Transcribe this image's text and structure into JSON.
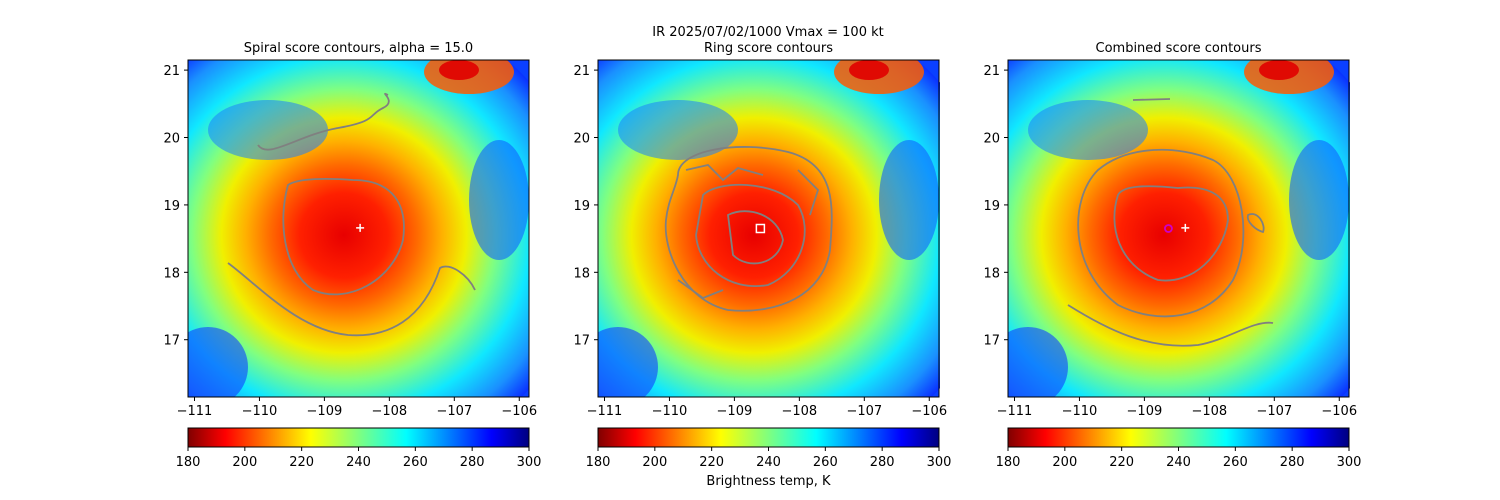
{
  "figure": {
    "suptitle_line1": "IR  2025/07/02/1000    Vmax = 100 kt",
    "colorbar_label": "Brightness temp, K"
  },
  "chart_data": [
    {
      "type": "heatmap",
      "title": "Spiral score contours, alpha = 15.0",
      "xlim": [
        -111.1,
        -105.85
      ],
      "ylim": [
        16.15,
        21.15
      ],
      "x_ticks": [
        -111,
        -110,
        -109,
        -108,
        -107,
        -106
      ],
      "y_ticks": [
        17,
        18,
        19,
        20,
        21
      ],
      "x_tick_labels": [
        "−111",
        "−110",
        "−109",
        "−108",
        "−107",
        "−106"
      ],
      "y_tick_labels": [
        "17",
        "18",
        "19",
        "20",
        "21"
      ],
      "colorbar": {
        "min": 180,
        "max": 300,
        "ticks": [
          180,
          200,
          220,
          240,
          260,
          280,
          300
        ],
        "colormap": "jet_r"
      },
      "markers": [
        {
          "kind": "plus",
          "lon": -108.45,
          "lat": 18.66,
          "color": "#ffffff"
        }
      ]
    },
    {
      "type": "heatmap",
      "title": "Ring score contours",
      "xlim": [
        -111.1,
        -105.85
      ],
      "ylim": [
        16.15,
        21.15
      ],
      "x_ticks": [
        -111,
        -110,
        -109,
        -108,
        -107,
        -106
      ],
      "y_ticks": [
        17,
        18,
        19,
        20,
        21
      ],
      "x_tick_labels": [
        "−111",
        "−110",
        "−109",
        "−108",
        "−107",
        "−106"
      ],
      "y_tick_labels": [
        "17",
        "18",
        "19",
        "20",
        "21"
      ],
      "colorbar": {
        "min": 180,
        "max": 300,
        "ticks": [
          180,
          200,
          220,
          240,
          260,
          280,
          300
        ],
        "colormap": "jet_r"
      },
      "markers": [
        {
          "kind": "square",
          "lon": -108.6,
          "lat": 18.65,
          "color": "#ffffff"
        }
      ]
    },
    {
      "type": "heatmap",
      "title": "Combined score contours",
      "xlim": [
        -111.1,
        -105.85
      ],
      "ylim": [
        16.15,
        21.15
      ],
      "x_ticks": [
        -111,
        -110,
        -109,
        -108,
        -107,
        -106
      ],
      "y_ticks": [
        17,
        18,
        19,
        20,
        21
      ],
      "x_tick_labels": [
        "−111",
        "−110",
        "−109",
        "−108",
        "−107",
        "−106"
      ],
      "y_tick_labels": [
        "17",
        "18",
        "19",
        "20",
        "21"
      ],
      "colorbar": {
        "min": 180,
        "max": 300,
        "ticks": [
          180,
          200,
          220,
          240,
          260,
          280,
          300
        ],
        "colormap": "jet_r"
      },
      "markers": [
        {
          "kind": "plus",
          "lon": -108.37,
          "lat": 18.66,
          "color": "#ffffff"
        },
        {
          "kind": "circle",
          "lon": -108.63,
          "lat": 18.65,
          "color": "#cc00cc"
        }
      ]
    }
  ],
  "style": {
    "contour_color": "#808080",
    "tick_color": "#000000"
  }
}
